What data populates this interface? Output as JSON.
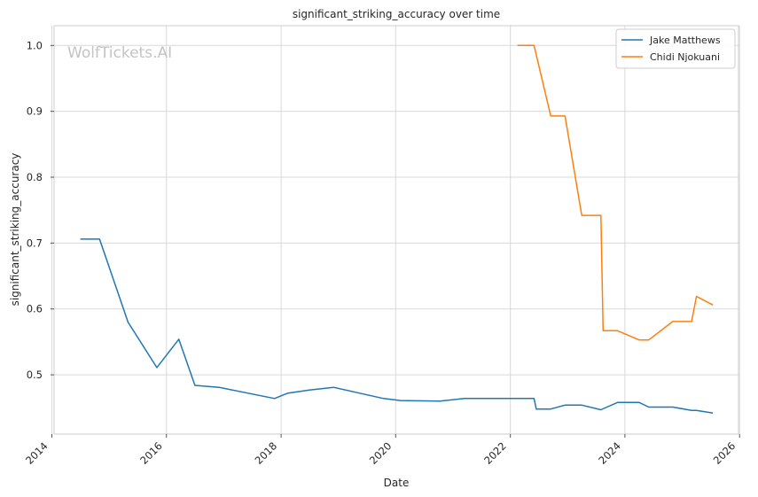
{
  "chart_data": {
    "type": "line",
    "title": "significant_striking_accuracy over time",
    "xlabel": "Date",
    "ylabel": "significant_striking_accuracy",
    "watermark": "WolfTickets.AI",
    "x_ticks": [
      "2014",
      "2016",
      "2018",
      "2020",
      "2022",
      "2024",
      "2026"
    ],
    "y_ticks": [
      "0.5",
      "0.6",
      "0.7",
      "0.8",
      "0.9",
      "1.0"
    ],
    "xlim": [
      "2014-01-15",
      "2025-12-25"
    ],
    "ylim": [
      0.41,
      1.03
    ],
    "grid": true,
    "legend_position": "top-right",
    "series": [
      {
        "name": "Jake Matthews",
        "color": "#1f77b4",
        "points": [
          [
            "2014-07-01",
            0.706
          ],
          [
            "2014-11-01",
            0.706
          ],
          [
            "2015-05-01",
            0.58
          ],
          [
            "2015-11-01",
            0.511
          ],
          [
            "2016-03-20",
            0.554
          ],
          [
            "2016-07-01",
            0.484
          ],
          [
            "2016-12-01",
            0.481
          ],
          [
            "2017-11-20",
            0.464
          ],
          [
            "2018-02-10",
            0.472
          ],
          [
            "2018-07-01",
            0.477
          ],
          [
            "2018-12-01",
            0.481
          ],
          [
            "2019-10-15",
            0.464
          ],
          [
            "2020-02-01",
            0.461
          ],
          [
            "2020-10-10",
            0.46
          ],
          [
            "2021-03-15",
            0.464
          ],
          [
            "2022-06-01",
            0.464
          ],
          [
            "2022-06-15",
            0.448
          ],
          [
            "2022-09-15",
            0.448
          ],
          [
            "2022-12-15",
            0.454
          ],
          [
            "2023-04-01",
            0.454
          ],
          [
            "2023-08-01",
            0.447
          ],
          [
            "2023-11-15",
            0.458
          ],
          [
            "2024-04-01",
            0.458
          ],
          [
            "2024-06-01",
            0.451
          ],
          [
            "2024-11-01",
            0.451
          ],
          [
            "2025-03-01",
            0.446
          ],
          [
            "2025-04-01",
            0.446
          ],
          [
            "2025-07-15",
            0.442
          ]
        ]
      },
      {
        "name": "Chidi Njokuani",
        "color": "#ff7f0e",
        "points": [
          [
            "2022-02-15",
            1.0
          ],
          [
            "2022-06-01",
            1.0
          ],
          [
            "2022-09-15",
            0.893
          ],
          [
            "2022-12-15",
            0.893
          ],
          [
            "2023-04-01",
            0.742
          ],
          [
            "2023-08-01",
            0.742
          ],
          [
            "2023-08-15",
            0.567
          ],
          [
            "2023-11-15",
            0.567
          ],
          [
            "2024-04-01",
            0.553
          ],
          [
            "2024-06-01",
            0.553
          ],
          [
            "2024-11-01",
            0.581
          ],
          [
            "2025-03-01",
            0.581
          ],
          [
            "2025-04-01",
            0.619
          ],
          [
            "2025-07-15",
            0.606
          ]
        ]
      }
    ]
  }
}
